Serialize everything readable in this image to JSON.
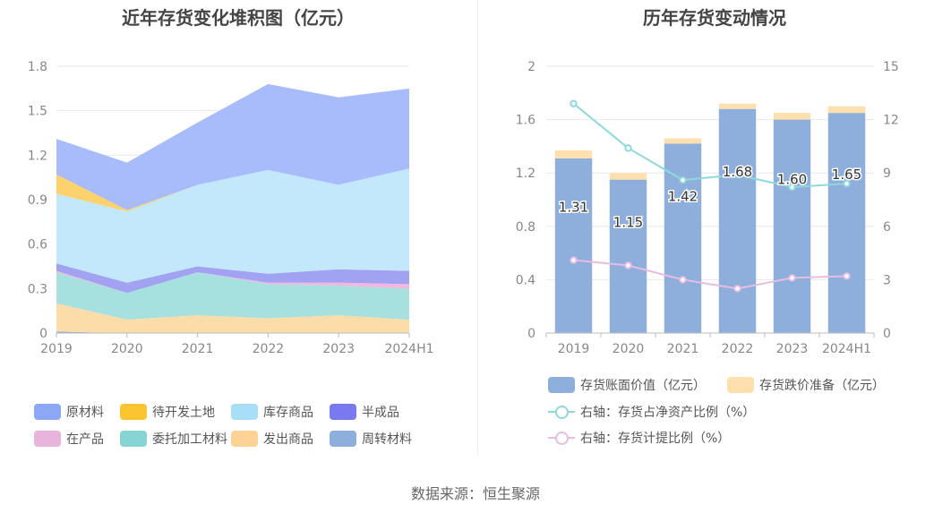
{
  "source_note": "数据来源：恒生聚源",
  "chart_data": [
    {
      "type": "area",
      "title": "近年存货变化堆积图（亿元）",
      "stacked": true,
      "x": [
        "2019",
        "2020",
        "2021",
        "2022",
        "2023",
        "2024H1"
      ],
      "ylim": [
        0,
        1.8
      ],
      "yticks": [
        "0",
        "0.3",
        "0.6",
        "0.9",
        "1.2",
        "1.5",
        "1.8"
      ],
      "grid": true,
      "legend_position": "bottom",
      "series": [
        {
          "name": "周转材料",
          "color": "#8eaedc",
          "values": [
            0.01,
            0.0,
            0.0,
            0.0,
            0.0,
            0.0
          ]
        },
        {
          "name": "发出商品",
          "color": "#fcddaa",
          "values": [
            0.19,
            0.09,
            0.12,
            0.1,
            0.12,
            0.09
          ]
        },
        {
          "name": "委托加工材料",
          "color": "#a6e1df",
          "values": [
            0.21,
            0.18,
            0.29,
            0.23,
            0.2,
            0.21
          ]
        },
        {
          "name": "在产品",
          "color": "#f2b6e0",
          "values": [
            0.01,
            0.0,
            0.0,
            0.01,
            0.02,
            0.03
          ]
        },
        {
          "name": "半成品",
          "color": "#a2a2f2",
          "values": [
            0.05,
            0.07,
            0.04,
            0.06,
            0.09,
            0.09
          ]
        },
        {
          "name": "库存商品",
          "color": "#c3e8fb",
          "values": [
            0.47,
            0.48,
            0.55,
            0.7,
            0.57,
            0.69
          ]
        },
        {
          "name": "待开发土地",
          "color": "#fdd26c",
          "values": [
            0.13,
            0.01,
            0.0,
            0.0,
            0.0,
            0.0
          ]
        },
        {
          "name": "原材料",
          "color": "#a8bcfb",
          "values": [
            0.24,
            0.32,
            0.42,
            0.58,
            0.59,
            0.54
          ]
        }
      ],
      "legend_order": [
        "原材料",
        "待开发土地",
        "库存商品",
        "半成品",
        "在产品",
        "委托加工材料",
        "发出商品",
        "周转材料"
      ],
      "legend_colors": {
        "原材料": "#8ba7f5",
        "待开发土地": "#fbc531",
        "库存商品": "#a8dff8",
        "半成品": "#7a7af0",
        "在产品": "#e8b4dc",
        "委托加工材料": "#86d4d4",
        "发出商品": "#fdd395",
        "周转材料": "#8eaedc"
      }
    },
    {
      "type": "bar",
      "title": "历年存货变动情况",
      "stacked": true,
      "categories": [
        "2019",
        "2020",
        "2021",
        "2022",
        "2023",
        "2024H1"
      ],
      "ylim": [
        0,
        2
      ],
      "yticks": [
        "0",
        "0.4",
        "0.8",
        "1.2",
        "1.6",
        "2"
      ],
      "y2lim": [
        0,
        15
      ],
      "y2ticks": [
        "0",
        "3",
        "6",
        "9",
        "12",
        "15"
      ],
      "grid": true,
      "legend_position": "bottom",
      "series": [
        {
          "name": "存货账面价值（亿元）",
          "type": "bar",
          "color": "#8eaedc",
          "values": [
            1.31,
            1.15,
            1.42,
            1.68,
            1.6,
            1.65
          ],
          "labels": [
            "1.31",
            "1.15",
            "1.42",
            "1.68",
            "1.60",
            "1.65"
          ]
        },
        {
          "name": "存货跌价准备（亿元）",
          "type": "bar",
          "color": "#fde0ae",
          "values": [
            0.06,
            0.05,
            0.04,
            0.04,
            0.05,
            0.05
          ]
        },
        {
          "name": "右轴：存货占净资产比例（%）",
          "type": "line",
          "axis": "right",
          "color": "#8fd9dc",
          "values": [
            12.9,
            10.4,
            8.6,
            8.9,
            8.2,
            8.4
          ]
        },
        {
          "name": "右轴：存货计提比例（%）",
          "type": "line",
          "axis": "right",
          "color": "#e6bde2",
          "values": [
            4.1,
            3.8,
            3.0,
            2.5,
            3.1,
            3.2
          ]
        }
      ]
    }
  ]
}
